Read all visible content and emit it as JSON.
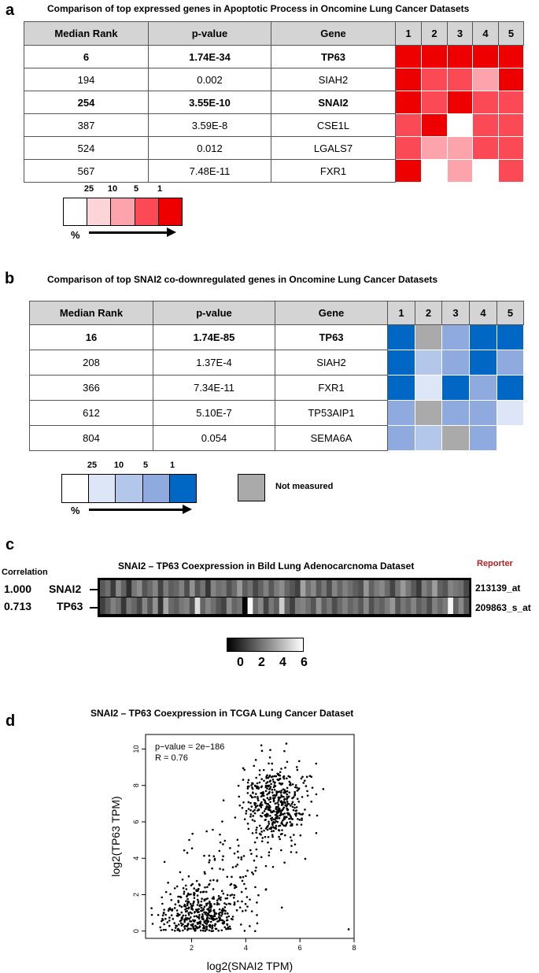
{
  "panel_a": {
    "letter": "a",
    "title": "Comparison of top expressed genes in Apoptotic Process  in Oncomine Lung Cancer Datasets",
    "headers": [
      "Median Rank",
      "p-value",
      "Gene",
      "1",
      "2",
      "3",
      "4",
      "5"
    ],
    "rows": [
      {
        "rank": "6",
        "pvalue": "1.74E-34",
        "gene": "TP63",
        "bold": true,
        "cells": [
          1,
          1,
          1,
          1,
          1
        ]
      },
      {
        "rank": "194",
        "pvalue": "0.002",
        "gene": "SIAH2",
        "bold": false,
        "cells": [
          1,
          5,
          5,
          10,
          1
        ]
      },
      {
        "rank": "254",
        "pvalue": "3.55E-10",
        "gene": "SNAI2",
        "bold": true,
        "cells": [
          1,
          5,
          1,
          5,
          5
        ]
      },
      {
        "rank": "387",
        "pvalue": "3.59E-8",
        "gene": "CSE1L",
        "bold": false,
        "cells": [
          5,
          1,
          0,
          5,
          5
        ]
      },
      {
        "rank": "524",
        "pvalue": "0.012",
        "gene": "LGALS7",
        "bold": false,
        "cells": [
          5,
          10,
          10,
          5,
          5
        ]
      },
      {
        "rank": "567",
        "pvalue": "7.48E-11",
        "gene": "FXR1",
        "bold": false,
        "cells": [
          1,
          0,
          10,
          0,
          5
        ]
      }
    ],
    "legend_labels": [
      "25",
      "10",
      "5",
      "1"
    ],
    "legend_unit": "%",
    "colors": {
      "0": "#ffffff",
      "25": "#fdd4d8",
      "10": "#fca3ab",
      "5": "#fb4a55",
      "1": "#ee0000"
    }
  },
  "panel_b": {
    "letter": "b",
    "title": "Comparison of top SNAI2  co-downregulated  genes in Oncomine Lung Cancer Datasets",
    "headers": [
      "Median Rank",
      "p-value",
      "Gene",
      "1",
      "2",
      "3",
      "4",
      "5"
    ],
    "rows": [
      {
        "rank": "16",
        "pvalue": "1.74E-85",
        "gene": "TP63",
        "bold": true,
        "cells": [
          1,
          "nm",
          5,
          1,
          1
        ]
      },
      {
        "rank": "208",
        "pvalue": "1.37E-4",
        "gene": "SIAH2",
        "bold": false,
        "cells": [
          1,
          10,
          5,
          1,
          5
        ]
      },
      {
        "rank": "366",
        "pvalue": "7.34E-11",
        "gene": "FXR1",
        "bold": false,
        "cells": [
          1,
          25,
          1,
          5,
          1
        ]
      },
      {
        "rank": "612",
        "pvalue": "5.10E-7",
        "gene": "TP53AIP1",
        "bold": false,
        "cells": [
          5,
          "nm",
          5,
          5,
          25
        ]
      },
      {
        "rank": "804",
        "pvalue": "0.054",
        "gene": "SEMA6A",
        "bold": false,
        "cells": [
          5,
          10,
          "nm",
          5,
          0
        ]
      }
    ],
    "legend_labels": [
      "25",
      "10",
      "5",
      "1"
    ],
    "legend_unit": "%",
    "not_measured_label": "Not measured",
    "colors": {
      "0": "#ffffff",
      "25": "#dce6f6",
      "10": "#b3c7ea",
      "5": "#8eaadf",
      "1": "#0068c4",
      "nm": "#aaaaaa"
    }
  },
  "panel_c": {
    "letter": "c",
    "title": "SNAI2 – TP63 Coexpression in Bild Lung Adenocarcnoma Dataset",
    "correlation_header": "Correlation",
    "reporter_header": "Reporter",
    "reporter_color": "#b22222",
    "rows": [
      {
        "correlation": "1.000",
        "gene": "SNAI2",
        "reporter": "213139_at",
        "values": [
          2.1,
          2.6,
          1.4,
          3.2,
          2.3,
          1.1,
          2.8,
          3.3,
          2.0,
          2.5,
          3.1,
          1.6,
          2.9,
          2.2,
          2.4,
          3.0,
          1.8,
          3.4,
          2.0,
          2.7,
          1.3,
          3.1,
          2.6,
          2.8,
          1.9,
          2.5,
          3.6,
          2.2,
          2.7,
          1.7,
          2.3,
          3.0,
          2.1,
          2.9,
          3.3,
          2.4,
          2.0,
          1.5,
          3.8,
          2.6,
          3.2,
          2.1,
          2.8,
          1.8,
          3.1,
          2.4,
          3.0,
          2.6,
          2.2,
          1.9,
          3.5,
          2.3,
          2.9,
          3.2,
          2.5,
          1.6,
          2.7,
          3.6,
          2.8,
          2.1,
          1.4,
          3.0,
          2.5,
          3.7,
          2.3,
          2.0,
          3.1,
          2.8,
          2.6,
          1.7
        ]
      },
      {
        "correlation": "0.713",
        "gene": "TP63",
        "reporter": "209863_s_at",
        "values": [
          1.5,
          2.2,
          3.0,
          2.6,
          1.3,
          2.8,
          2.4,
          1.7,
          3.1,
          2.0,
          3.4,
          1.2,
          3.9,
          2.5,
          2.2,
          2.8,
          3.0,
          1.9,
          5.2,
          2.4,
          3.1,
          2.6,
          2.0,
          1.6,
          3.3,
          2.4,
          2.7,
          0.1,
          5.9,
          2.5,
          3.2,
          1.6,
          2.8,
          2.2,
          4.8,
          2.3,
          1.5,
          2.9,
          3.1,
          2.6,
          2.0,
          3.4,
          2.2,
          2.8,
          1.8,
          2.5,
          3.0,
          2.4,
          2.7,
          2.1,
          3.2,
          1.9,
          2.6,
          2.3,
          2.9,
          3.5,
          2.0,
          2.8,
          2.4,
          3.1,
          2.2,
          2.6,
          1.8,
          3.0,
          2.5,
          2.9,
          5.8,
          2.3,
          3.2,
          2.0
        ]
      }
    ],
    "scale_ticks": [
      "0",
      "2",
      "4",
      "6"
    ],
    "scale_range": [
      0,
      6
    ]
  },
  "panel_d": {
    "letter": "d",
    "title": "SNAI2 – TP63 Coexpression in TCGA Lung Cancer Dataset",
    "annotation_p": "p−value = 2e−186",
    "annotation_r": "R = 0.76",
    "chart_data": {
      "type": "scatter",
      "title": "SNAI2 – TP63 Coexpression in TCGA Lung Cancer Dataset",
      "xlabel": "log2(SNAI2 TPM)",
      "ylabel": "log2(TP63 TPM)",
      "xlim": [
        0.3,
        8.0
      ],
      "ylim": [
        -0.4,
        10.8
      ],
      "xticks": [
        "2",
        "4",
        "6",
        "8"
      ],
      "yticks": [
        "0",
        "2",
        "4",
        "6",
        "8",
        "10"
      ],
      "xtick_values": [
        2,
        4,
        6,
        8
      ],
      "ytick_values": [
        0,
        2,
        4,
        6,
        8,
        10
      ],
      "annotations": [
        "p−value = 2e−186",
        "R = 0.76"
      ],
      "clusters": [
        {
          "name": "",
          "n": 420,
          "x_mean": 2.3,
          "x_sd": 0.75,
          "y_mean": 0.9,
          "y_sd": 0.75,
          "y_min": 0.0
        },
        {
          "name": "",
          "n": 480,
          "x_mean": 5.1,
          "x_sd": 0.6,
          "y_mean": 7.0,
          "y_sd": 1.0,
          "y_min": 0.0
        },
        {
          "name": "",
          "n": 110,
          "x_mean": 3.6,
          "x_sd": 0.9,
          "y_mean": 3.4,
          "y_sd": 1.4,
          "y_min": 0.0
        }
      ],
      "outliers": [
        [
          7.8,
          0.1
        ],
        [
          1.0,
          3.8
        ],
        [
          5.5,
          10.3
        ],
        [
          4.6,
          9.9
        ],
        [
          6.6,
          9.2
        ]
      ]
    }
  }
}
